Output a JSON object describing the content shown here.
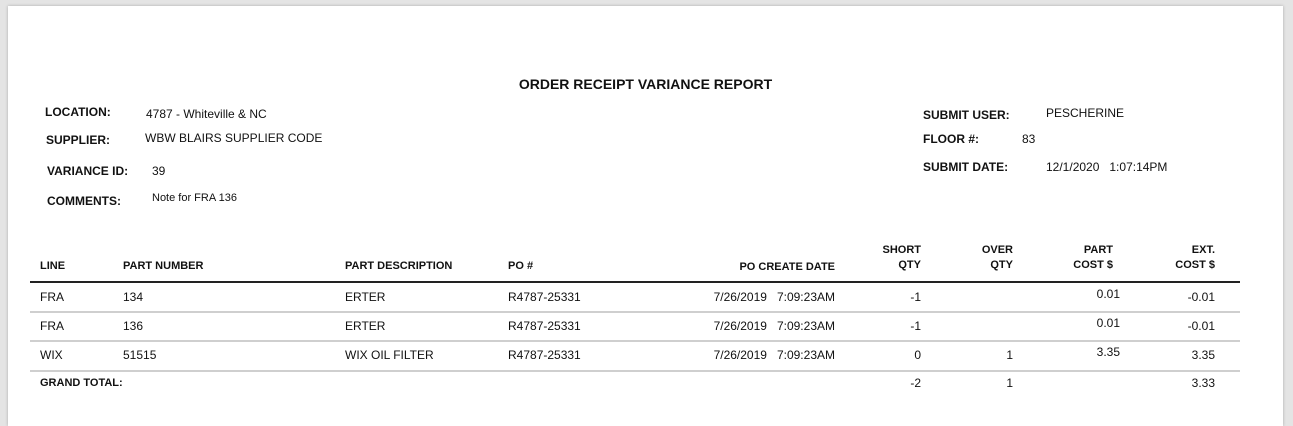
{
  "report": {
    "title": "ORDER RECEIPT VARIANCE REPORT",
    "location": {
      "label": "LOCATION:",
      "value": "4787 - Whiteville & NC"
    },
    "supplier": {
      "label": "SUPPLIER:",
      "value": "WBW BLAIRS SUPPLIER CODE"
    },
    "variance_id": {
      "label": "VARIANCE ID:",
      "value": "39"
    },
    "comments": {
      "label": "COMMENTS:",
      "value": "Note for FRA 136"
    },
    "submit_user": {
      "label": "SUBMIT USER:",
      "value": "PESCHERINE"
    },
    "floor": {
      "label": "FLOOR #:",
      "value": "83"
    },
    "submit_date": {
      "label": "SUBMIT DATE:",
      "value": "12/1/2020   1:07:14PM"
    }
  },
  "table": {
    "headers": {
      "line": "LINE",
      "part_number": "PART NUMBER",
      "part_description": "PART DESCRIPTION",
      "po": "PO #",
      "po_create_date": "PO CREATE DATE",
      "short_qty": [
        "SHORT",
        "QTY"
      ],
      "over_qty": [
        "OVER",
        "QTY"
      ],
      "part_cost": [
        "PART",
        "COST $"
      ],
      "ext_cost": [
        "EXT.",
        "COST $"
      ]
    },
    "rows": [
      {
        "line": "FRA",
        "part_number": "134",
        "part_description": "ERTER",
        "po": "R4787-25331",
        "po_create_date": "7/26/2019   7:09:23AM",
        "short_qty": "-1",
        "over_qty": "",
        "part_cost": "0.01",
        "ext_cost": "-0.01"
      },
      {
        "line": "FRA",
        "part_number": "136",
        "part_description": "ERTER",
        "po": "R4787-25331",
        "po_create_date": "7/26/2019   7:09:23AM",
        "short_qty": "-1",
        "over_qty": "",
        "part_cost": "0.01",
        "ext_cost": "-0.01"
      },
      {
        "line": "WIX",
        "part_number": "51515",
        "part_description": "WIX OIL FILTER",
        "po": "R4787-25331",
        "po_create_date": "7/26/2019   7:09:23AM",
        "short_qty": "0",
        "over_qty": "1",
        "part_cost": "3.35",
        "ext_cost": "3.35"
      }
    ],
    "grand_total": {
      "label": "GRAND TOTAL:",
      "short_qty": "-2",
      "over_qty": "1",
      "ext_cost": "3.33"
    }
  }
}
